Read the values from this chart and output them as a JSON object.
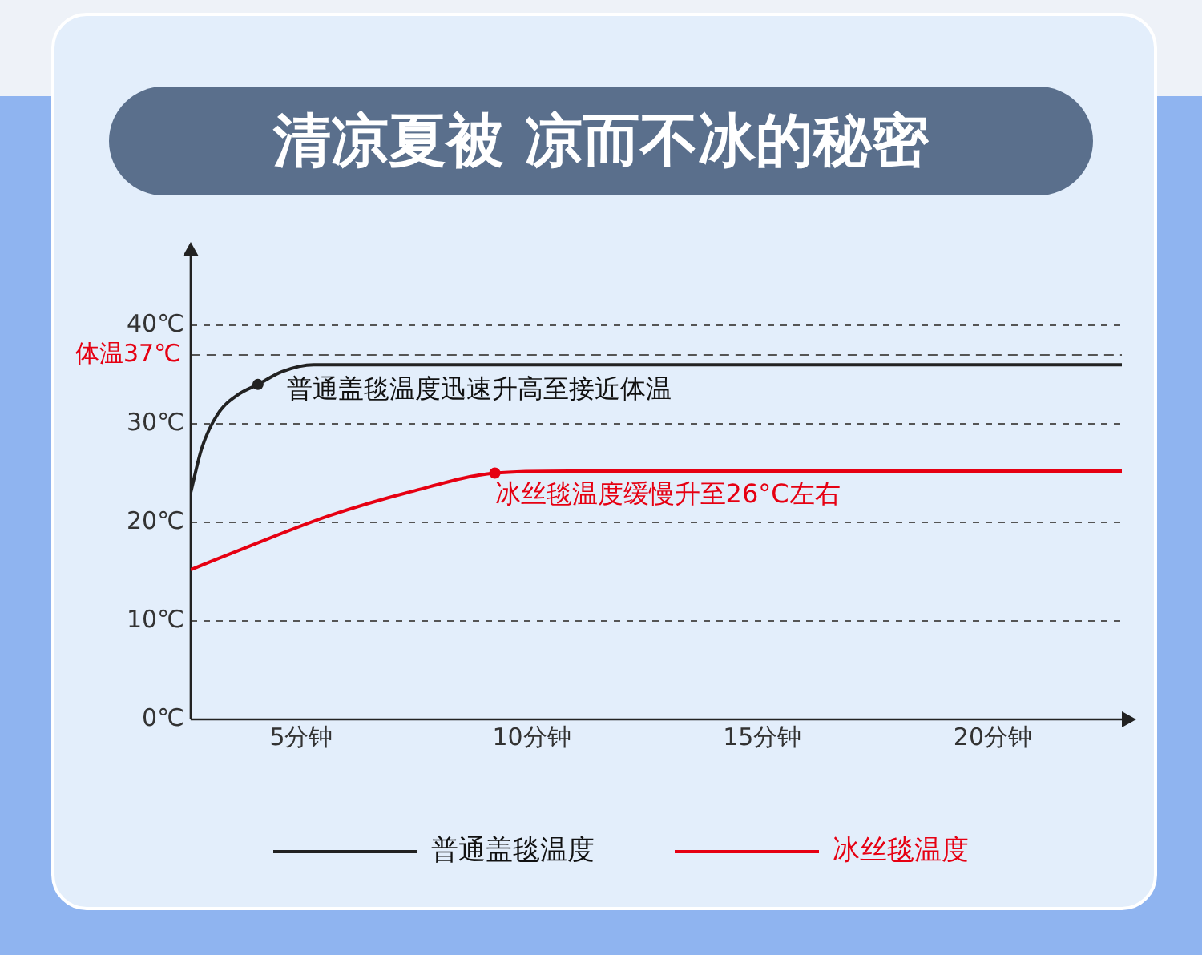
{
  "chart_data": {
    "type": "line",
    "title": "清凉夏被 凉而不冰的秘密",
    "xlim": [
      2.6,
      22.8
    ],
    "xticks": [
      {
        "value": 5,
        "label": "5分钟"
      },
      {
        "value": 10,
        "label": "10分钟"
      },
      {
        "value": 15,
        "label": "15分钟"
      },
      {
        "value": 20,
        "label": "20分钟"
      }
    ],
    "ylim": [
      0,
      47
    ],
    "yticks": [
      {
        "value": 0,
        "label": "0℃"
      },
      {
        "value": 10,
        "label": "10℃"
      },
      {
        "value": 20,
        "label": "20℃"
      },
      {
        "value": 30,
        "label": "30℃"
      },
      {
        "value": 40,
        "label": "40℃"
      }
    ],
    "series": [
      {
        "name": "普通盖毯温度",
        "color": "#222222",
        "x": [
          2.6,
          2.84,
          3.19,
          3.64,
          4.06,
          4.58,
          5.27,
          22.8
        ],
        "values": [
          23,
          27.5,
          31,
          33,
          34,
          35.3,
          36,
          36
        ]
      },
      {
        "name": "冰丝毯温度",
        "color": "#e60012",
        "x": [
          2.6,
          3.88,
          5.62,
          7.36,
          9.2,
          10.8,
          22.8
        ],
        "values": [
          15.2,
          17.6,
          20.7,
          23.1,
          25,
          25.2,
          25.2
        ]
      }
    ],
    "annotations": [
      {
        "text": "普通盖毯温度迅速升高至接近体温",
        "x": 4.06,
        "y": 34
      },
      {
        "text": "冰丝毯温度缓慢升至26°C左右",
        "x": 9.2,
        "y": 25
      }
    ],
    "ref_lines": [
      {
        "axis": "y",
        "value": 37,
        "label": "体温37℃",
        "line_style": "dashed"
      }
    ],
    "grid": "y",
    "legend": "bottom",
    "marker": "none",
    "line_style": "solid"
  }
}
